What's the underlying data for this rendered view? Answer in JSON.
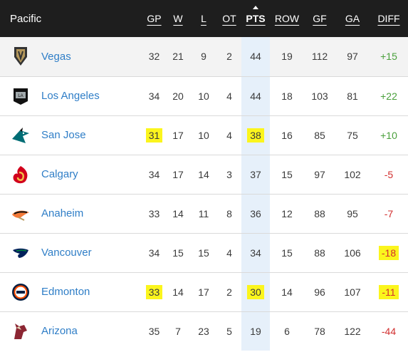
{
  "header": {
    "division": "Pacific",
    "columns": [
      "GP",
      "W",
      "L",
      "OT",
      "PTS",
      "ROW",
      "GF",
      "GA",
      "DIFF"
    ]
  },
  "rows": [
    {
      "team": "Vegas",
      "logo": "golden-knights-logo",
      "gp": "32",
      "w": "21",
      "l": "9",
      "ot": "2",
      "pts": "44",
      "row": "19",
      "gf": "112",
      "ga": "97",
      "diff": "+15",
      "diff_sign": "pos"
    },
    {
      "team": "Los Angeles",
      "logo": "kings-logo",
      "gp": "34",
      "w": "20",
      "l": "10",
      "ot": "4",
      "pts": "44",
      "row": "18",
      "gf": "103",
      "ga": "81",
      "diff": "+22",
      "diff_sign": "pos"
    },
    {
      "team": "San Jose",
      "logo": "sharks-logo",
      "gp": "31",
      "w": "17",
      "l": "10",
      "ot": "4",
      "pts": "38",
      "row": "16",
      "gf": "85",
      "ga": "75",
      "diff": "+10",
      "diff_sign": "pos"
    },
    {
      "team": "Calgary",
      "logo": "flames-logo",
      "gp": "34",
      "w": "17",
      "l": "14",
      "ot": "3",
      "pts": "37",
      "row": "15",
      "gf": "97",
      "ga": "102",
      "diff": "-5",
      "diff_sign": "neg"
    },
    {
      "team": "Anaheim",
      "logo": "ducks-logo",
      "gp": "33",
      "w": "14",
      "l": "11",
      "ot": "8",
      "pts": "36",
      "row": "12",
      "gf": "88",
      "ga": "95",
      "diff": "-7",
      "diff_sign": "neg"
    },
    {
      "team": "Vancouver",
      "logo": "canucks-logo",
      "gp": "34",
      "w": "15",
      "l": "15",
      "ot": "4",
      "pts": "34",
      "row": "15",
      "gf": "88",
      "ga": "106",
      "diff": "-18",
      "diff_sign": "neg"
    },
    {
      "team": "Edmonton",
      "logo": "oilers-logo",
      "gp": "33",
      "w": "14",
      "l": "17",
      "ot": "2",
      "pts": "30",
      "row": "14",
      "gf": "96",
      "ga": "107",
      "diff": "-11",
      "diff_sign": "neg"
    },
    {
      "team": "Arizona",
      "logo": "coyotes-logo",
      "gp": "35",
      "w": "7",
      "l": "23",
      "ot": "5",
      "pts": "19",
      "row": "6",
      "gf": "78",
      "ga": "122",
      "diff": "-44",
      "diff_sign": "neg"
    }
  ],
  "colors": {
    "header_bg": "#1e1e1e",
    "team_link": "#2f7ec7",
    "positive": "#4aa03c",
    "negative": "#d22f2f",
    "pts_column": "#e6f0fa",
    "highlight": "#fbf51d"
  }
}
